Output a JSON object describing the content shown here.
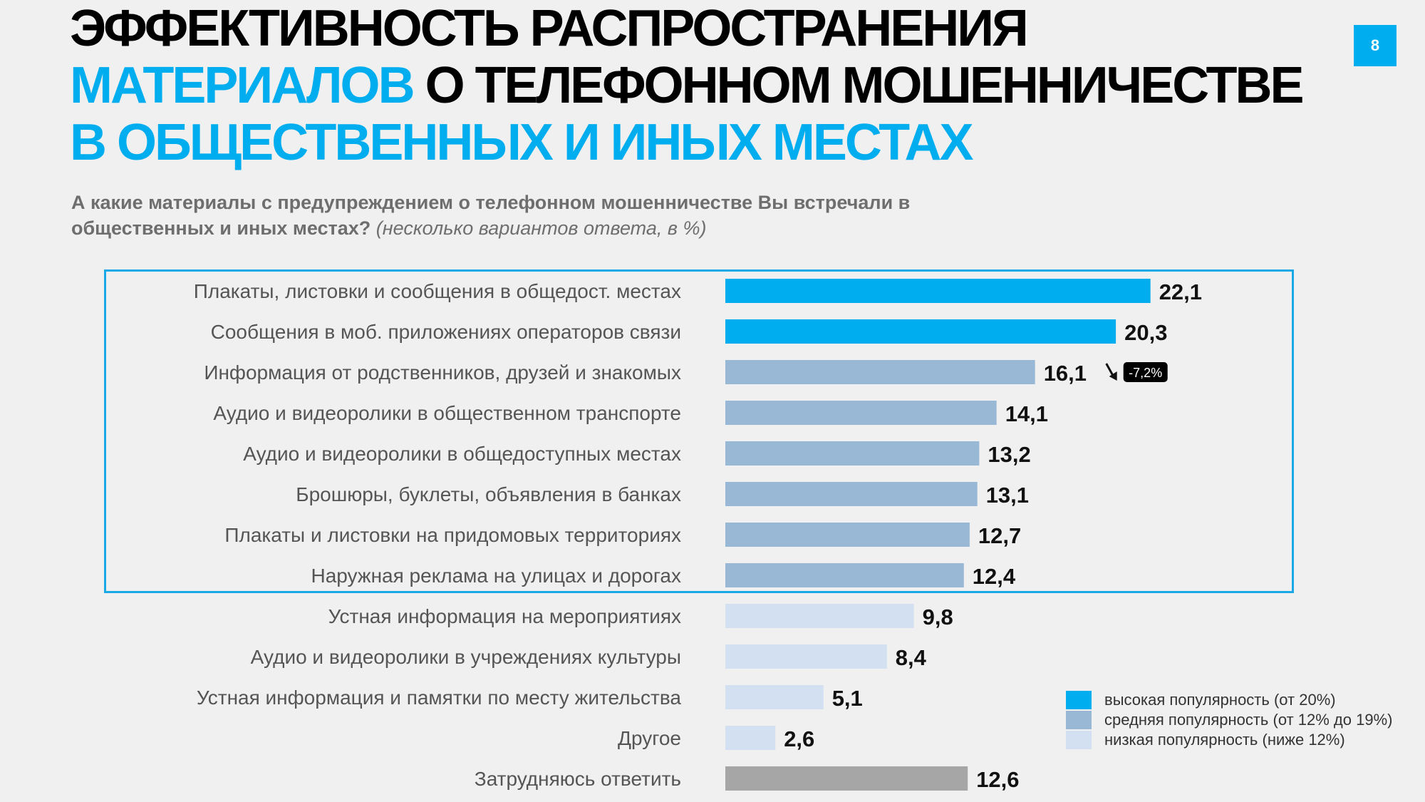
{
  "header": {
    "title_line1": "ЭФФЕКТИВНОСТЬ РАСПРОСТРАНЕНИЯ",
    "title_line2_blue": "МАТЕРИАЛОВ",
    "title_line2_rest": " О ТЕЛЕФОННОМ МОШЕННИЧЕСТВЕ",
    "title_line3": "В ОБЩЕСТВЕННЫХ И ИНЫХ МЕСТАХ",
    "page_number": "8"
  },
  "question": {
    "bold_text": "А какие материалы с предупреждением о телефонном мошенничестве Вы встречали в общественных и иных местах?",
    "note": "(несколько вариантов ответа, в %)"
  },
  "colors": {
    "high": "#00adee",
    "medium": "#98b8d6",
    "low": "#d2e0f1",
    "hard_to_say": "#a6a6a6",
    "accent": "#00adee"
  },
  "chart_data": {
    "type": "bar",
    "orientation": "horizontal",
    "categories": [
      "Плакаты, листовки и сообщения в общедост. местах",
      "Сообщения в моб. приложениях операторов связи",
      "Информация от родственников, друзей и знакомых",
      "Аудио и видеоролики в общественном транспорте",
      "Аудио и видеоролики в общедоступных местах",
      "Брошюры, буклеты, объявления в банках",
      "Плакаты и листовки на придомовых территориях",
      "Наружная реклама на улицах и дорогах",
      "Устная информация на мероприятиях",
      "Аудио и видеоролики в учреждениях культуры",
      "Устная информация и памятки по месту жительства",
      "Другое",
      "Затрудняюсь ответить"
    ],
    "values": [
      22.1,
      20.3,
      16.1,
      14.1,
      13.2,
      13.1,
      12.7,
      12.4,
      9.8,
      8.4,
      5.1,
      2.6,
      12.6
    ],
    "value_labels": [
      "22,1",
      "20,3",
      "16,1",
      "14,1",
      "13,2",
      "13,1",
      "12,7",
      "12,4",
      "9,8",
      "8,4",
      "5,1",
      "2,6",
      "12,6"
    ],
    "popularity": [
      "high",
      "high",
      "medium",
      "medium",
      "medium",
      "medium",
      "medium",
      "medium",
      "low",
      "low",
      "low",
      "low",
      "hard_to_say"
    ],
    "annotations": [
      {
        "category_index": 2,
        "text": "-7,2%",
        "direction": "down"
      }
    ],
    "xlim": [
      0,
      25
    ],
    "grid": false,
    "legend_position": "bottom-right"
  },
  "legend": {
    "items": [
      {
        "key": "high",
        "label": "высокая популярность (от 20%)"
      },
      {
        "key": "medium",
        "label": "средняя популярность (от 12% до 19%)"
      },
      {
        "key": "low",
        "label": "низкая популярность (ниже 12%)"
      }
    ]
  }
}
